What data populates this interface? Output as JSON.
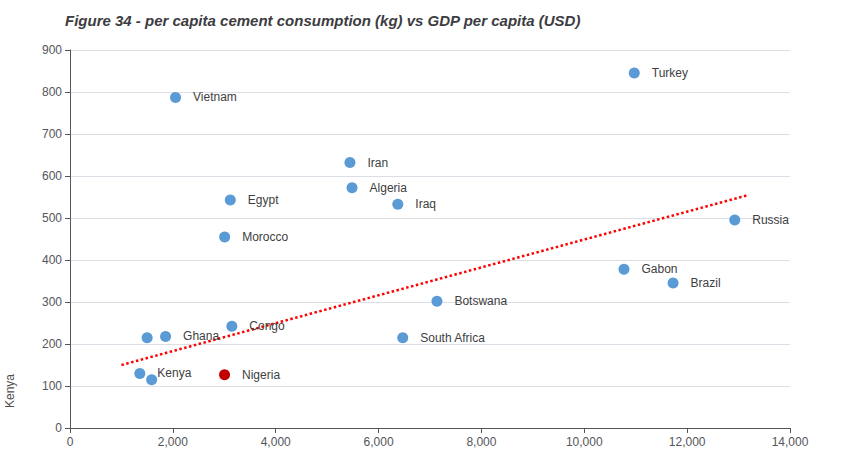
{
  "chart_data": {
    "type": "scatter",
    "title": "Figure 34 - per capita cement consumption (kg) vs GDP per capita (USD)",
    "xlim": [
      0,
      14000
    ],
    "ylim": [
      0,
      900
    ],
    "xticks": [
      0,
      {
        "value": 2000,
        "label": "2,000"
      },
      {
        "value": 4000,
        "label": "4,000"
      },
      {
        "value": 6000,
        "label": "6,000"
      },
      {
        "value": 8000,
        "label": "8,000"
      },
      {
        "value": 10000,
        "label": "10,000"
      },
      {
        "value": 12000,
        "label": "12,000"
      },
      {
        "value": 14000,
        "label": "14,000"
      }
    ],
    "yticks": [
      0,
      100,
      200,
      300,
      400,
      500,
      600,
      700,
      800,
      900
    ],
    "grid": true,
    "annotations": [
      "Kenya"
    ],
    "series": [
      {
        "type": "scatter",
        "x": [
          2052,
          3117,
          3007,
          5443,
          5484,
          6374,
          10972,
          10772,
          11726,
          12926,
          1858,
          1500,
          3147,
          7135,
          6470,
          1358,
          1588,
          3005
        ],
        "values": [
          787,
          543,
          455,
          632,
          572,
          533,
          845,
          378,
          345,
          495,
          218,
          215,
          242,
          302,
          215,
          130,
          115,
          127
        ],
        "labels": [
          "Vietnam",
          "Egypt",
          "Morocco",
          "Iran",
          "Algeria",
          "Iraq",
          "Turkey",
          "Gabon",
          "Brazil",
          "Russia",
          "Ghana",
          null,
          "Congo",
          "Botswana",
          "South Africa",
          "Kenya",
          null,
          "Nigeria"
        ],
        "colors": [
          "#5b9bd5",
          "#5b9bd5",
          "#5b9bd5",
          "#5b9bd5",
          "#5b9bd5",
          "#5b9bd5",
          "#5b9bd5",
          "#5b9bd5",
          "#5b9bd5",
          "#5b9bd5",
          "#5b9bd5",
          "#5b9bd5",
          "#5b9bd5",
          "#5b9bd5",
          "#5b9bd5",
          "#5b9bd5",
          "#5b9bd5",
          "#c00000"
        ]
      },
      {
        "type": "line",
        "color": "red",
        "line_style": "dotted",
        "x": [
          1000,
          13200
        ],
        "values": [
          150,
          555
        ]
      }
    ]
  }
}
